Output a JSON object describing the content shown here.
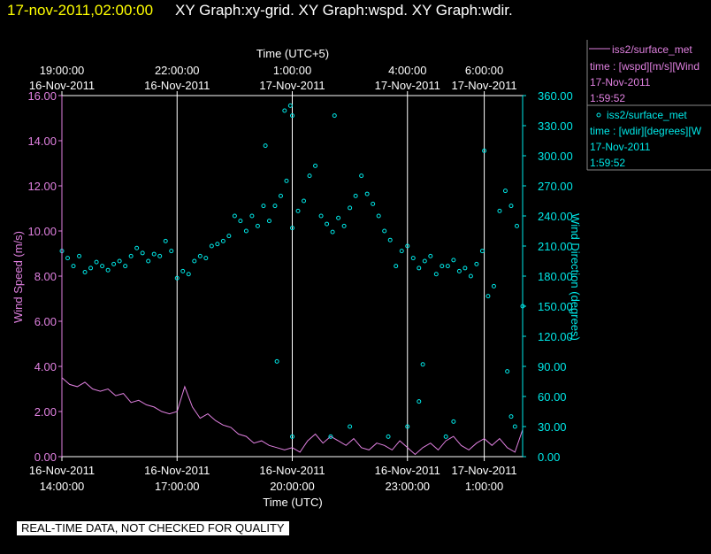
{
  "header": {
    "timestamp": "17-nov-2011,02:00:00",
    "graphs": "XY Graph:xy-grid.  XY Graph:wspd.  XY Graph:wdir."
  },
  "colors": {
    "speed": "#e080e0",
    "dir": "#00e8e8",
    "header_time": "#ffff00",
    "grid": "#ffffff"
  },
  "legend": {
    "speed": {
      "name": "iss2/surface_met",
      "desc": "time : [wspd][m/s][Wind",
      "date": "17-Nov-2011",
      "time": "1:59:52"
    },
    "dir": {
      "name": "iss2/surface_met",
      "desc": "time : [wdir][degrees][W",
      "date": "17-Nov-2011",
      "time": "1:59:52"
    }
  },
  "footer": {
    "quality_note": "REAL-TIME DATA, NOT CHECKED FOR QUALITY"
  },
  "chart_data": {
    "type": "line",
    "xlabel_bottom": "Time (UTC)",
    "xlabel_top": "Time (UTC+5)",
    "ylabel_left": "Wind Speed (m/s)",
    "ylabel_right": "Wind Direction (degrees)",
    "x_range_hours": [
      14.0,
      26.0
    ],
    "bottom_ticks": [
      {
        "hour": 14,
        "date": "16-Nov-2011",
        "time": "14:00:00"
      },
      {
        "hour": 17,
        "date": "16-Nov-2011",
        "time": "17:00:00"
      },
      {
        "hour": 20,
        "date": "16-Nov-2011",
        "time": "20:00:00"
      },
      {
        "hour": 23,
        "date": "16-Nov-2011",
        "time": "23:00:00"
      },
      {
        "hour": 25,
        "date": "17-Nov-2011",
        "time": "1:00:00"
      }
    ],
    "top_ticks": [
      {
        "hour": 14,
        "date": "16-Nov-2011",
        "time": "19:00:00"
      },
      {
        "hour": 17,
        "date": "16-Nov-2011",
        "time": "22:00:00"
      },
      {
        "hour": 20,
        "date": "17-Nov-2011",
        "time": "1:00:00"
      },
      {
        "hour": 23,
        "date": "17-Nov-2011",
        "time": "4:00:00"
      },
      {
        "hour": 25,
        "date": "17-Nov-2011",
        "time": "6:00:00"
      }
    ],
    "y_left": {
      "range": [
        0,
        16
      ],
      "ticks": [
        "0.00",
        "2.00",
        "4.00",
        "6.00",
        "8.00",
        "10.00",
        "12.00",
        "14.00",
        "16.00"
      ]
    },
    "y_right": {
      "range": [
        0,
        360
      ],
      "ticks": [
        "0.00",
        "30.00",
        "60.00",
        "90.00",
        "120.00",
        "150.00",
        "180.00",
        "210.00",
        "240.00",
        "270.00",
        "300.00",
        "330.00",
        "360.00"
      ]
    },
    "vertical_grid_hours": [
      17,
      20,
      23,
      25
    ],
    "series": [
      {
        "name": "iss2/surface_met wspd",
        "axis": "left",
        "style": "line",
        "x_hours": [
          14.0,
          14.2,
          14.4,
          14.6,
          14.8,
          15.0,
          15.2,
          15.4,
          15.6,
          15.8,
          16.0,
          16.2,
          16.4,
          16.6,
          16.8,
          17.0,
          17.2,
          17.4,
          17.6,
          17.8,
          18.0,
          18.2,
          18.4,
          18.6,
          18.8,
          19.0,
          19.2,
          19.4,
          19.6,
          19.8,
          20.0,
          20.2,
          20.4,
          20.6,
          20.8,
          21.0,
          21.2,
          21.4,
          21.6,
          21.8,
          22.0,
          22.2,
          22.4,
          22.6,
          22.8,
          23.0,
          23.2,
          23.4,
          23.6,
          23.8,
          24.0,
          24.2,
          24.4,
          24.6,
          24.8,
          25.0,
          25.2,
          25.4,
          25.6,
          25.8,
          26.0
        ],
        "values": [
          3.5,
          3.2,
          3.1,
          3.3,
          3.0,
          2.9,
          3.0,
          2.7,
          2.8,
          2.4,
          2.5,
          2.3,
          2.2,
          2.0,
          1.9,
          2.0,
          3.1,
          2.2,
          1.7,
          1.9,
          1.6,
          1.4,
          1.3,
          1.0,
          0.9,
          0.6,
          0.7,
          0.5,
          0.4,
          0.3,
          0.4,
          0.2,
          0.7,
          1.0,
          0.6,
          0.9,
          0.7,
          0.5,
          0.8,
          0.4,
          0.3,
          0.6,
          0.5,
          0.3,
          0.7,
          0.4,
          0.1,
          0.4,
          0.6,
          0.3,
          0.7,
          0.9,
          0.5,
          0.3,
          0.6,
          0.8,
          0.5,
          0.8,
          0.4,
          0.2,
          1.2
        ]
      },
      {
        "name": "iss2/surface_met wdir",
        "axis": "right",
        "style": "scatter",
        "x_hours": [
          14.0,
          14.15,
          14.3,
          14.45,
          14.6,
          14.75,
          14.9,
          15.05,
          15.2,
          15.35,
          15.5,
          15.65,
          15.8,
          15.95,
          16.1,
          16.25,
          16.4,
          16.55,
          16.7,
          16.85,
          17.0,
          17.15,
          17.3,
          17.45,
          17.6,
          17.75,
          17.9,
          18.05,
          18.2,
          18.35,
          18.5,
          18.65,
          18.8,
          18.95,
          19.1,
          19.25,
          19.4,
          19.55,
          19.7,
          19.85,
          20.0,
          20.15,
          20.3,
          20.45,
          20.6,
          20.75,
          20.9,
          21.05,
          21.2,
          21.35,
          21.5,
          21.65,
          21.8,
          21.95,
          22.1,
          22.25,
          22.4,
          22.55,
          22.7,
          22.85,
          23.0,
          23.15,
          23.3,
          23.45,
          23.6,
          23.75,
          23.9,
          24.05,
          24.2,
          24.35,
          24.5,
          24.65,
          24.8,
          24.95,
          25.1,
          25.25,
          25.4,
          25.55,
          25.7,
          25.85,
          26.0
        ],
        "values": [
          205,
          198,
          190,
          200,
          184,
          188,
          194,
          190,
          186,
          192,
          195,
          190,
          200,
          208,
          203,
          195,
          202,
          200,
          215,
          205,
          178,
          185,
          182,
          195,
          200,
          198,
          210,
          212,
          215,
          220,
          240,
          235,
          225,
          240,
          230,
          250,
          235,
          250,
          260,
          275,
          228,
          245,
          255,
          280,
          290,
          240,
          232,
          224,
          238,
          230,
          248,
          260,
          280,
          262,
          252,
          240,
          225,
          216,
          190,
          205,
          210,
          198,
          188,
          195,
          200,
          182,
          190,
          190,
          196,
          185,
          188,
          180,
          192,
          205,
          160,
          170,
          245,
          265,
          250,
          230,
          150
        ],
        "outliers": [
          [
            19.8,
            345
          ],
          [
            19.95,
            350
          ],
          [
            20.0,
            340
          ],
          [
            21.1,
            340
          ],
          [
            19.3,
            310
          ],
          [
            19.6,
            95
          ],
          [
            23.0,
            30
          ],
          [
            23.3,
            55
          ],
          [
            23.4,
            92
          ],
          [
            22.5,
            20
          ],
          [
            25.0,
            305
          ],
          [
            25.6,
            85
          ],
          [
            25.7,
            40
          ],
          [
            25.8,
            30
          ],
          [
            20.0,
            20
          ],
          [
            21.5,
            30
          ],
          [
            21.0,
            20
          ],
          [
            24.0,
            20
          ],
          [
            24.2,
            35
          ]
        ]
      }
    ],
    "legend_position": "right"
  }
}
